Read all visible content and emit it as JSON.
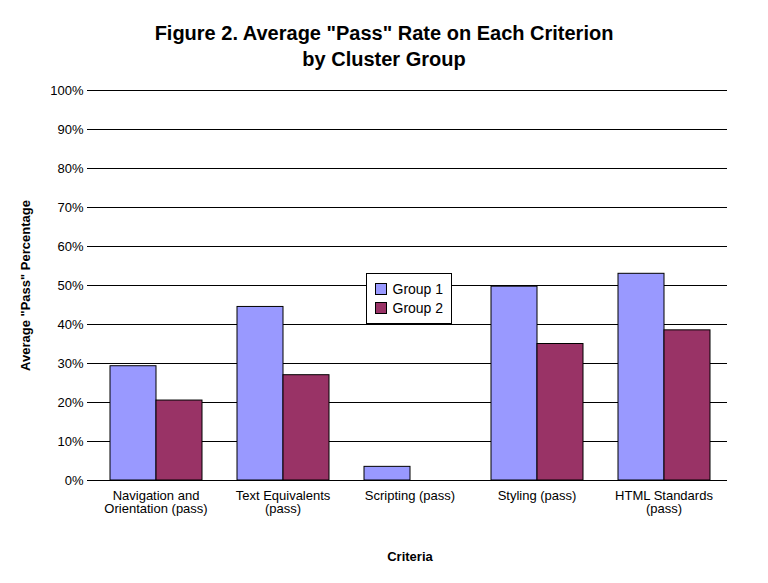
{
  "chart_data": {
    "type": "bar",
    "title": "Figure 2. Average \"Pass\" Rate on Each Criterion\nby Cluster Group",
    "x_label": "Criteria",
    "y_label": "Average \"Pass\" Percentage",
    "categories": [
      "Navigation and Orientation (pass)",
      "Text Equivalents (pass)",
      "Scripting (pass)",
      "Styling (pass)",
      "HTML Standards (pass)"
    ],
    "series": [
      {
        "name": "Group 1",
        "color": "#9999ff",
        "values": [
          29.3,
          44.5,
          3.5,
          49.7,
          53.0
        ]
      },
      {
        "name": "Group 2",
        "color": "#993366",
        "values": [
          20.5,
          27.0,
          0,
          35.0,
          38.5
        ]
      }
    ],
    "ylim": [
      0,
      100
    ],
    "yticks": [
      {
        "value": 0,
        "label": "0%"
      },
      {
        "value": 10,
        "label": "10%"
      },
      {
        "value": 20,
        "label": "20%"
      },
      {
        "value": 30,
        "label": "30%"
      },
      {
        "value": 40,
        "label": "40%"
      },
      {
        "value": 50,
        "label": "50%"
      },
      {
        "value": 60,
        "label": "60%"
      },
      {
        "value": 70,
        "label": "70%"
      },
      {
        "value": 80,
        "label": "80%"
      },
      {
        "value": 90,
        "label": "90%"
      },
      {
        "value": 100,
        "label": "100%"
      }
    ],
    "grid": true,
    "legend": "center"
  }
}
